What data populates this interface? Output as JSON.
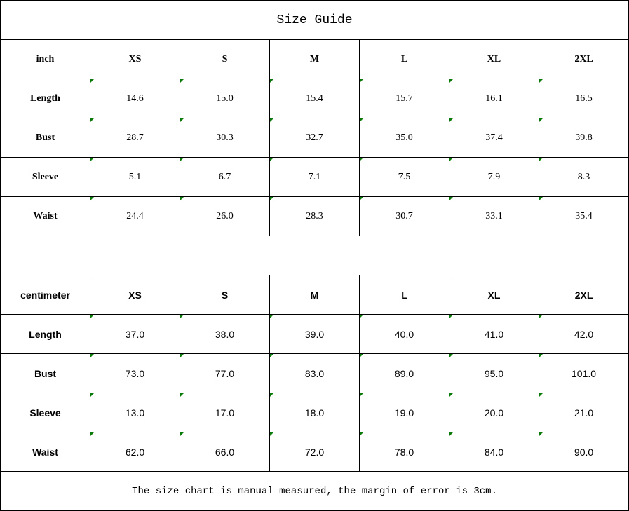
{
  "title": "Size Guide",
  "inch": {
    "header": [
      "inch",
      "XS",
      "S",
      "M",
      "L",
      "XL",
      "2XL"
    ],
    "rows": [
      {
        "label": "Length",
        "values": [
          "14.6",
          "15.0",
          "15.4",
          "15.7",
          "16.1",
          "16.5"
        ]
      },
      {
        "label": "Bust",
        "values": [
          "28.7",
          "30.3",
          "32.7",
          "35.0",
          "37.4",
          "39.8"
        ]
      },
      {
        "label": "Sleeve",
        "values": [
          "5.1",
          "6.7",
          "7.1",
          "7.5",
          "7.9",
          "8.3"
        ]
      },
      {
        "label": "Waist",
        "values": [
          "24.4",
          "26.0",
          "28.3",
          "30.7",
          "33.1",
          "35.4"
        ]
      }
    ]
  },
  "cm": {
    "header": [
      "centimeter",
      "XS",
      "S",
      "M",
      "L",
      "XL",
      "2XL"
    ],
    "rows": [
      {
        "label": "Length",
        "values": [
          "37.0",
          "38.0",
          "39.0",
          "40.0",
          "41.0",
          "42.0"
        ]
      },
      {
        "label": "Bust",
        "values": [
          "73.0",
          "77.0",
          "83.0",
          "89.0",
          "95.0",
          "101.0"
        ]
      },
      {
        "label": "Sleeve",
        "values": [
          "13.0",
          "17.0",
          "18.0",
          "19.0",
          "20.0",
          "21.0"
        ]
      },
      {
        "label": "Waist",
        "values": [
          "62.0",
          "66.0",
          "72.0",
          "78.0",
          "84.0",
          "90.0"
        ]
      }
    ]
  },
  "footer": "The size chart is manual measured, the margin of error is 3cm.",
  "colors": {
    "cell_marker": "#0a7a0a"
  }
}
